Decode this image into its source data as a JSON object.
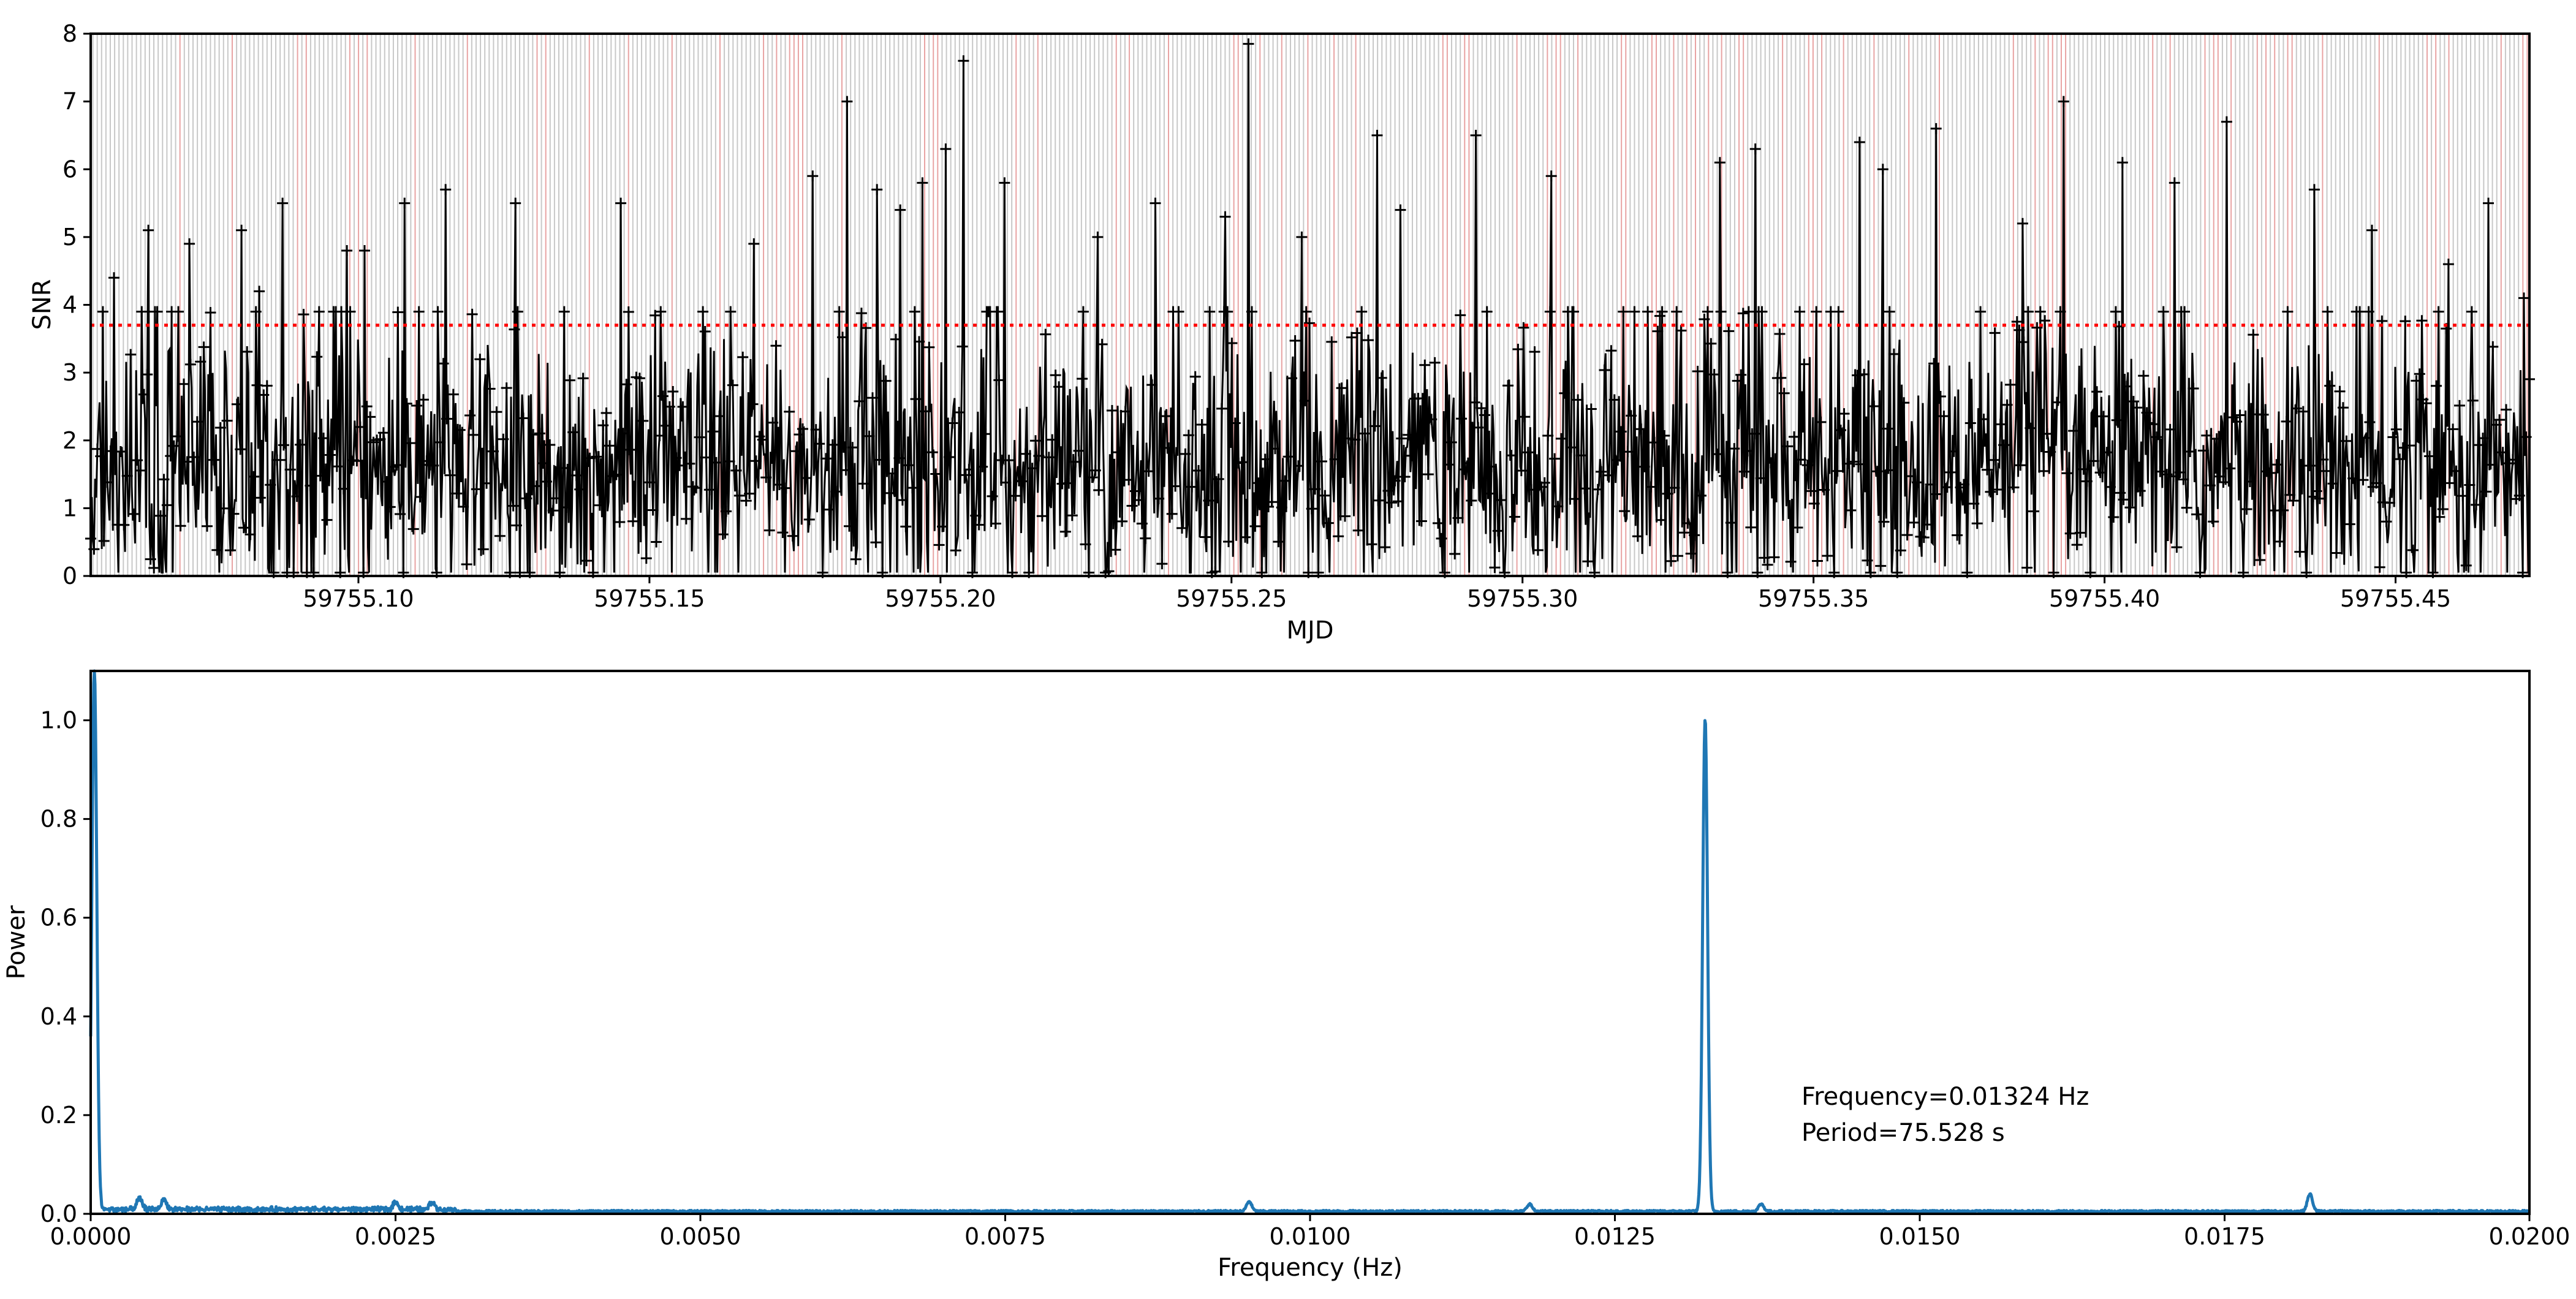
{
  "chart_data": [
    {
      "type": "line",
      "title": "",
      "xlabel": "MJD",
      "ylabel": "SNR",
      "xlim": [
        59755.054,
        59755.473
      ],
      "ylim": [
        0,
        8
      ],
      "x_tick_labels": [
        "59755.10",
        "59755.15",
        "59755.20",
        "59755.25",
        "59755.30",
        "59755.35",
        "59755.40",
        "59755.45"
      ],
      "x_tick_values": [
        59755.1,
        59755.15,
        59755.2,
        59755.25,
        59755.3,
        59755.35,
        59755.4,
        59755.45
      ],
      "y_tick_labels": [
        "0",
        "1",
        "2",
        "3",
        "4",
        "5",
        "6",
        "7",
        "8"
      ],
      "y_tick_values": [
        0,
        1,
        2,
        3,
        4,
        5,
        6,
        7,
        8
      ],
      "threshold": 3.7,
      "series": [
        {
          "name": "SNR",
          "color": "#000000",
          "marker": "+",
          "mean": 1.5,
          "sigma": 0.9,
          "description": "dense noisy SNR time series"
        }
      ],
      "peaks": [
        {
          "x": 59755.058,
          "y": 4.4
        },
        {
          "x": 59755.065,
          "y": 3.9
        },
        {
          "x": 59755.064,
          "y": 5.1
        },
        {
          "x": 59755.071,
          "y": 4.9
        },
        {
          "x": 59755.08,
          "y": 5.1
        },
        {
          "x": 59755.083,
          "y": 4.2
        },
        {
          "x": 59755.087,
          "y": 5.5
        },
        {
          "x": 59755.098,
          "y": 4.8
        },
        {
          "x": 59755.101,
          "y": 4.8
        },
        {
          "x": 59755.108,
          "y": 5.5
        },
        {
          "x": 59755.115,
          "y": 5.7
        },
        {
          "x": 59755.127,
          "y": 5.5
        },
        {
          "x": 59755.145,
          "y": 5.5
        },
        {
          "x": 59755.168,
          "y": 4.9
        },
        {
          "x": 59755.178,
          "y": 5.9
        },
        {
          "x": 59755.184,
          "y": 7.0
        },
        {
          "x": 59755.189,
          "y": 5.7
        },
        {
          "x": 59755.193,
          "y": 5.4
        },
        {
          "x": 59755.197,
          "y": 5.8
        },
        {
          "x": 59755.201,
          "y": 6.3
        },
        {
          "x": 59755.204,
          "y": 7.6
        },
        {
          "x": 59755.211,
          "y": 5.8
        },
        {
          "x": 59755.227,
          "y": 5.0
        },
        {
          "x": 59755.237,
          "y": 5.5
        },
        {
          "x": 59755.249,
          "y": 5.3
        },
        {
          "x": 59755.253,
          "y": 7.85
        },
        {
          "x": 59755.262,
          "y": 5.0
        },
        {
          "x": 59755.275,
          "y": 6.5
        },
        {
          "x": 59755.279,
          "y": 5.4
        },
        {
          "x": 59755.292,
          "y": 6.5
        },
        {
          "x": 59755.305,
          "y": 5.9
        },
        {
          "x": 59755.334,
          "y": 6.1
        },
        {
          "x": 59755.34,
          "y": 6.3
        },
        {
          "x": 59755.358,
          "y": 6.4
        },
        {
          "x": 59755.362,
          "y": 6.0
        },
        {
          "x": 59755.371,
          "y": 6.6
        },
        {
          "x": 59755.386,
          "y": 5.2
        },
        {
          "x": 59755.393,
          "y": 7.0
        },
        {
          "x": 59755.403,
          "y": 6.1
        },
        {
          "x": 59755.412,
          "y": 5.8
        },
        {
          "x": 59755.421,
          "y": 6.7
        },
        {
          "x": 59755.436,
          "y": 5.7
        },
        {
          "x": 59755.446,
          "y": 5.1
        },
        {
          "x": 59755.459,
          "y": 4.6
        },
        {
          "x": 59755.466,
          "y": 5.5
        },
        {
          "x": 59755.472,
          "y": 4.1
        }
      ]
    },
    {
      "type": "line",
      "title": "",
      "xlabel": "Frequency (Hz)",
      "ylabel": "Power",
      "xlim": [
        0.0,
        0.02
      ],
      "ylim": [
        0.0,
        1.1
      ],
      "x_tick_labels": [
        "0.0000",
        "0.0025",
        "0.0050",
        "0.0075",
        "0.0100",
        "0.0125",
        "0.0150",
        "0.0175",
        "0.0200"
      ],
      "x_tick_values": [
        0.0,
        0.0025,
        0.005,
        0.0075,
        0.01,
        0.0125,
        0.015,
        0.0175,
        0.02
      ],
      "y_tick_labels": [
        "0.0",
        "0.2",
        "0.4",
        "0.6",
        "0.8",
        "1.0"
      ],
      "y_tick_values": [
        0.0,
        0.2,
        0.4,
        0.6,
        0.8,
        1.0
      ],
      "series": [
        {
          "name": "Power",
          "color": "#1f77b4",
          "peaks": [
            {
              "x": 3e-05,
              "y": 1.1
            },
            {
              "x": 0.01324,
              "y": 1.0
            },
            {
              "x": 0.0182,
              "y": 0.035
            },
            {
              "x": 0.0095,
              "y": 0.02
            },
            {
              "x": 0.0137,
              "y": 0.015
            },
            {
              "x": 0.0118,
              "y": 0.015
            },
            {
              "x": 0.0004,
              "y": 0.022
            },
            {
              "x": 0.0006,
              "y": 0.02
            },
            {
              "x": 0.0025,
              "y": 0.015
            },
            {
              "x": 0.0028,
              "y": 0.015
            }
          ],
          "baseline": 0.005
        }
      ],
      "annotations": [
        {
          "text": "Frequency=0.01324 Hz"
        },
        {
          "text": "Period=75.528 s"
        }
      ]
    }
  ]
}
